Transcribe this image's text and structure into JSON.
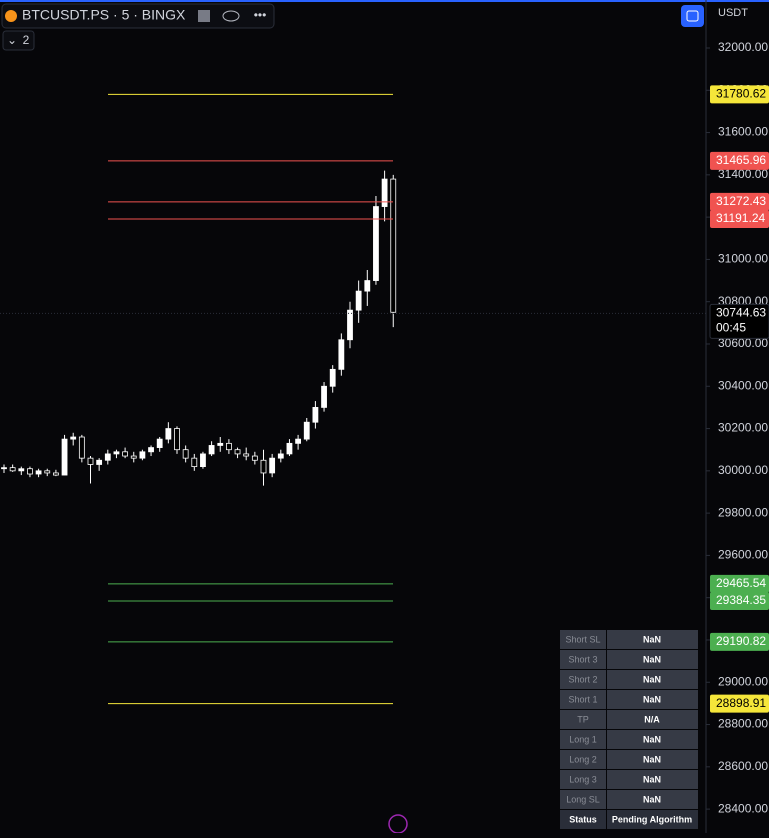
{
  "header": {
    "symbol": "BTCUSDT.PS · 5 · BINGX",
    "indicator_count": "2",
    "currency": "USDT"
  },
  "chart_data": {
    "type": "candlestick",
    "open": [
      30010,
      30015,
      30000,
      30010,
      29985,
      30000,
      29990,
      29980,
      30150,
      30160,
      30060,
      30030,
      30050,
      30080,
      30090,
      30070,
      30060,
      30090,
      30110,
      30150,
      30200,
      30100,
      30060,
      30020,
      30080,
      30120,
      30130,
      30100,
      30080,
      30070,
      30050,
      29990,
      30060,
      30080,
      30130,
      30150,
      30230,
      30300,
      30400,
      30480,
      30620,
      30760,
      30850,
      30900,
      31250,
      31380
    ],
    "high": [
      30030,
      30030,
      30020,
      30020,
      30010,
      30010,
      30005,
      30170,
      30180,
      30170,
      30070,
      30060,
      30100,
      30100,
      30110,
      30090,
      30100,
      30120,
      30160,
      30230,
      30210,
      30120,
      30080,
      30090,
      30140,
      30160,
      30150,
      30110,
      30110,
      30090,
      30100,
      30080,
      30100,
      30150,
      30170,
      30250,
      30330,
      30420,
      30500,
      30650,
      30800,
      30900,
      30950,
      31300,
      31420,
      31400
    ],
    "low": [
      29990,
      29995,
      29980,
      29970,
      29970,
      29975,
      29975,
      29980,
      30120,
      30040,
      29940,
      30000,
      30030,
      30060,
      30060,
      30040,
      30050,
      30070,
      30090,
      30130,
      30080,
      30040,
      30000,
      30010,
      30070,
      30090,
      30080,
      30060,
      30050,
      30030,
      29930,
      29970,
      30040,
      30070,
      30100,
      30140,
      30200,
      30280,
      30370,
      30450,
      30580,
      30700,
      30780,
      30880,
      31180,
      30680
    ],
    "close": [
      30015,
      30000,
      30010,
      29985,
      30000,
      29990,
      29980,
      30150,
      30160,
      30060,
      30030,
      30050,
      30080,
      30090,
      30070,
      30060,
      30090,
      30110,
      30150,
      30200,
      30100,
      30060,
      30020,
      30080,
      30120,
      30130,
      30100,
      30080,
      30070,
      30050,
      29990,
      30060,
      30080,
      30130,
      30150,
      30230,
      30300,
      30400,
      30480,
      30620,
      30760,
      30850,
      30900,
      31250,
      31380,
      30750
    ],
    "up_color": "#ffffff",
    "down_color": "#000000",
    "ylim": [
      28287,
      32227
    ],
    "yticks": [
      {
        "value": 28400,
        "label": "28400.00"
      },
      {
        "value": 28600,
        "label": "28600.00"
      },
      {
        "value": 28800,
        "label": "28800.00"
      },
      {
        "value": 29000,
        "label": "29000.00"
      },
      {
        "value": 29200,
        "label": "29200.00"
      },
      {
        "value": 29400,
        "label": "29400.00"
      },
      {
        "value": 29600,
        "label": "29600.00"
      },
      {
        "value": 29800,
        "label": "29800.00"
      },
      {
        "value": 30000,
        "label": "30000.00"
      },
      {
        "value": 30200,
        "label": "30200.00"
      },
      {
        "value": 30400,
        "label": "30400.00"
      },
      {
        "value": 30600,
        "label": "30600.00"
      },
      {
        "value": 30800,
        "label": "30800.00"
      },
      {
        "value": 31000,
        "label": "31000.00"
      },
      {
        "value": 31200,
        "label": "31200.00"
      },
      {
        "value": 31400,
        "label": "31400.00"
      },
      {
        "value": 31600,
        "label": "31600.00"
      },
      {
        "value": 31800,
        "label": "31800.00"
      },
      {
        "value": 32000,
        "label": "32000.00"
      }
    ],
    "levels": [
      {
        "value": 31780.62,
        "color": "#f5e63a",
        "text_color": "#000000"
      },
      {
        "value": 31465.96,
        "color": "#f05350",
        "text_color": "#ffffff"
      },
      {
        "value": 31272.43,
        "color": "#f05350",
        "text_color": "#ffffff"
      },
      {
        "value": 31191.24,
        "color": "#f05350",
        "text_color": "#ffffff"
      },
      {
        "value": 29465.54,
        "color": "#4caf50",
        "text_color": "#ffffff"
      },
      {
        "value": 29384.35,
        "color": "#4caf50",
        "text_color": "#ffffff"
      },
      {
        "value": 29190.82,
        "color": "#4caf50",
        "text_color": "#ffffff"
      },
      {
        "value": 28898.91,
        "color": "#f5e63a",
        "text_color": "#000000"
      }
    ],
    "last_price": 30744.63,
    "countdown": "00:45"
  },
  "table": {
    "rows": [
      [
        "Short SL",
        "NaN"
      ],
      [
        "Short 3",
        "NaN"
      ],
      [
        "Short 2",
        "NaN"
      ],
      [
        "Short 1",
        "NaN"
      ],
      [
        "TP",
        "N/A"
      ],
      [
        "Long 1",
        "NaN"
      ],
      [
        "Long 2",
        "NaN"
      ],
      [
        "Long 3",
        "NaN"
      ],
      [
        "Long SL",
        "NaN"
      ],
      [
        "Status",
        "Pending Algorithm"
      ]
    ]
  }
}
